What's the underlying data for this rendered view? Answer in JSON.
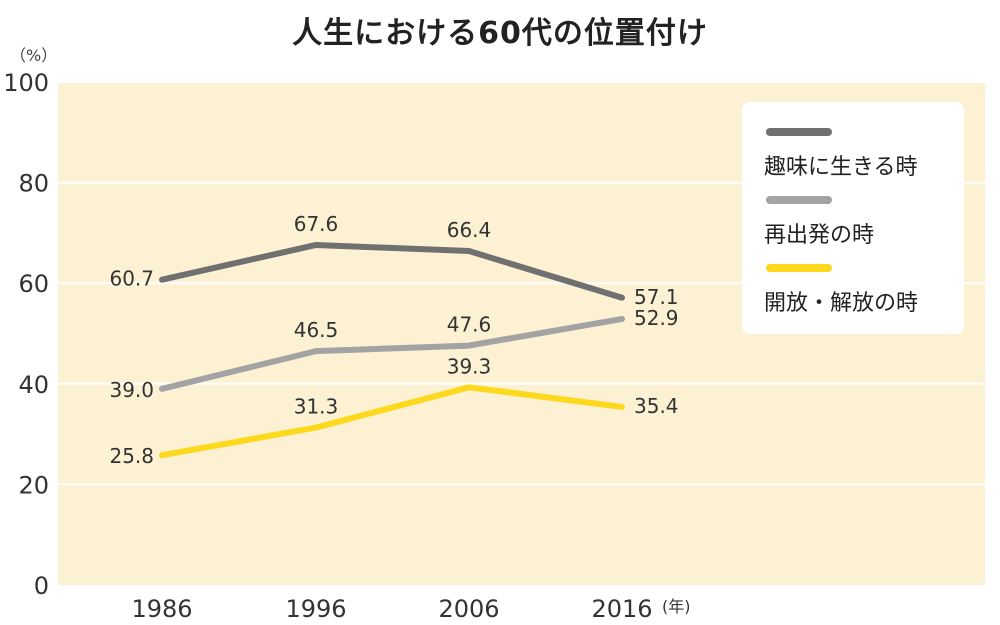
{
  "unit_label": "（%）",
  "chart_data": {
    "type": "line",
    "title": "人生における60代の位置付け",
    "categories": [
      "1986",
      "1996",
      "2006",
      "2016"
    ],
    "x_unit": "(年)",
    "ylim": [
      0,
      100
    ],
    "yticks": [
      0,
      20,
      40,
      60,
      80,
      100
    ],
    "ylabel": "（%）",
    "grid": true,
    "legend_position": "top-right",
    "series": [
      {
        "name": "趣味に生きる時",
        "color": "#707070",
        "values": [
          60.7,
          67.6,
          66.4,
          57.1
        ],
        "labels": [
          "60.7",
          "67.6",
          "66.4",
          "57.1"
        ]
      },
      {
        "name": "再出発の時",
        "color": "#a3a3a3",
        "values": [
          39.0,
          46.5,
          47.6,
          52.9
        ],
        "labels": [
          "39.0",
          "46.5",
          "47.6",
          "52.9"
        ]
      },
      {
        "name": "開放・解放の時",
        "color": "#fcd91c",
        "values": [
          25.8,
          31.3,
          39.3,
          35.4
        ],
        "labels": [
          "25.8",
          "31.3",
          "39.3",
          "35.4"
        ]
      }
    ],
    "plot_background": "#fdf1d4"
  }
}
